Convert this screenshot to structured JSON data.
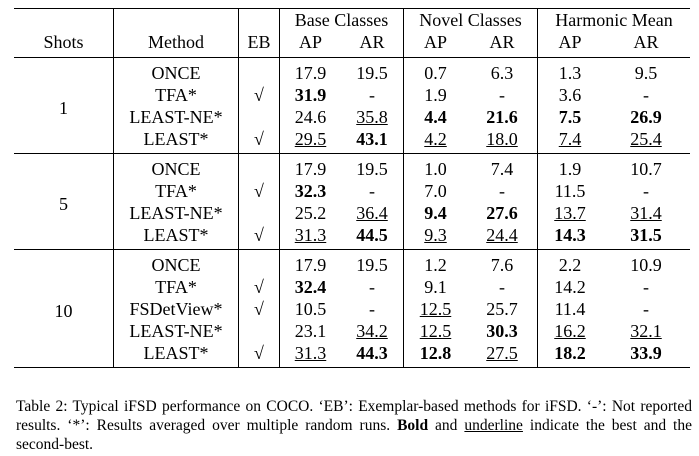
{
  "table": {
    "header_groups": [
      "Base Classes",
      "Novel Classes",
      "Harmonic Mean"
    ],
    "header": [
      "Shots",
      "Method",
      "EB",
      "AP",
      "AR",
      "AP",
      "AR",
      "AP",
      "AR"
    ],
    "groups": [
      {
        "shots": "1",
        "rows": [
          {
            "method": "ONCE",
            "eb": null,
            "cells": [
              {
                "text": "17.9"
              },
              {
                "text": "19.5"
              },
              {
                "text": "0.7"
              },
              {
                "text": "6.3"
              },
              {
                "text": "1.3"
              },
              {
                "text": "9.5"
              }
            ]
          },
          {
            "method": "TFA*",
            "eb": "√",
            "cells": [
              {
                "text": "31.9",
                "bold": true
              },
              {
                "text": "-"
              },
              {
                "text": "1.9"
              },
              {
                "text": "-"
              },
              {
                "text": "3.6"
              },
              {
                "text": "-"
              }
            ]
          },
          {
            "method": "LEAST-NE*",
            "eb": null,
            "cells": [
              {
                "text": "24.6"
              },
              {
                "text": "35.8",
                "underline": true
              },
              {
                "text": "4.4",
                "bold": true
              },
              {
                "text": "21.6",
                "bold": true
              },
              {
                "text": "7.5",
                "bold": true
              },
              {
                "text": "26.9",
                "bold": true
              }
            ]
          },
          {
            "method": "LEAST*",
            "eb": "√",
            "cells": [
              {
                "text": "29.5",
                "underline": true
              },
              {
                "text": "43.1",
                "bold": true
              },
              {
                "text": "4.2",
                "underline": true
              },
              {
                "text": "18.0",
                "underline": true
              },
              {
                "text": "7.4",
                "underline": true
              },
              {
                "text": "25.4",
                "underline": true
              }
            ]
          }
        ]
      },
      {
        "shots": "5",
        "rows": [
          {
            "method": "ONCE",
            "eb": null,
            "cells": [
              {
                "text": "17.9"
              },
              {
                "text": "19.5"
              },
              {
                "text": "1.0"
              },
              {
                "text": "7.4"
              },
              {
                "text": "1.9"
              },
              {
                "text": "10.7"
              }
            ]
          },
          {
            "method": "TFA*",
            "eb": "√",
            "cells": [
              {
                "text": "32.3",
                "bold": true
              },
              {
                "text": "-"
              },
              {
                "text": "7.0"
              },
              {
                "text": "-"
              },
              {
                "text": "11.5"
              },
              {
                "text": "-"
              }
            ]
          },
          {
            "method": "LEAST-NE*",
            "eb": null,
            "cells": [
              {
                "text": "25.2"
              },
              {
                "text": "36.4",
                "underline": true
              },
              {
                "text": "9.4",
                "bold": true
              },
              {
                "text": "27.6",
                "bold": true
              },
              {
                "text": "13.7",
                "underline": true
              },
              {
                "text": "31.4",
                "underline": true
              }
            ]
          },
          {
            "method": "LEAST*",
            "eb": "√",
            "cells": [
              {
                "text": "31.3",
                "underline": true
              },
              {
                "text": "44.5",
                "bold": true
              },
              {
                "text": "9.3",
                "underline": true
              },
              {
                "text": "24.4",
                "underline": true
              },
              {
                "text": "14.3",
                "bold": true
              },
              {
                "text": "31.5",
                "bold": true
              }
            ]
          }
        ]
      },
      {
        "shots": "10",
        "rows": [
          {
            "method": "ONCE",
            "eb": null,
            "cells": [
              {
                "text": "17.9"
              },
              {
                "text": "19.5"
              },
              {
                "text": "1.2"
              },
              {
                "text": "7.6"
              },
              {
                "text": "2.2"
              },
              {
                "text": "10.9"
              }
            ]
          },
          {
            "method": "TFA*",
            "eb": "√",
            "cells": [
              {
                "text": "32.4",
                "bold": true
              },
              {
                "text": "-"
              },
              {
                "text": "9.1"
              },
              {
                "text": "-"
              },
              {
                "text": "14.2"
              },
              {
                "text": "-"
              }
            ]
          },
          {
            "method": "FSDetView*",
            "eb": "√",
            "cells": [
              {
                "text": "10.5"
              },
              {
                "text": "-"
              },
              {
                "text": "12.5",
                "underline": true
              },
              {
                "text": "25.7"
              },
              {
                "text": "11.4"
              },
              {
                "text": "-"
              }
            ]
          },
          {
            "method": "LEAST-NE*",
            "eb": null,
            "cells": [
              {
                "text": "23.1"
              },
              {
                "text": "34.2",
                "underline": true
              },
              {
                "text": "12.5",
                "underline": true
              },
              {
                "text": "30.3",
                "bold": true
              },
              {
                "text": "16.2",
                "underline": true
              },
              {
                "text": "32.1",
                "underline": true
              }
            ]
          },
          {
            "method": "LEAST*",
            "eb": "√",
            "cells": [
              {
                "text": "31.3",
                "underline": true
              },
              {
                "text": "44.3",
                "bold": true
              },
              {
                "text": "12.8",
                "bold": true
              },
              {
                "text": "27.5",
                "underline": true
              },
              {
                "text": "18.2",
                "bold": true
              },
              {
                "text": "33.9",
                "bold": true
              }
            ]
          }
        ]
      }
    ]
  },
  "caption": [
    "Table 2: Typical iFSD performance on COCO. ‘EB’: Exemplar-based methods for iFSD. ‘-’: Not reported results. ‘*’: Results averaged over multiple random runs. ",
    "Bold",
    " and ",
    "underline",
    " indicate the best and the second-best."
  ]
}
